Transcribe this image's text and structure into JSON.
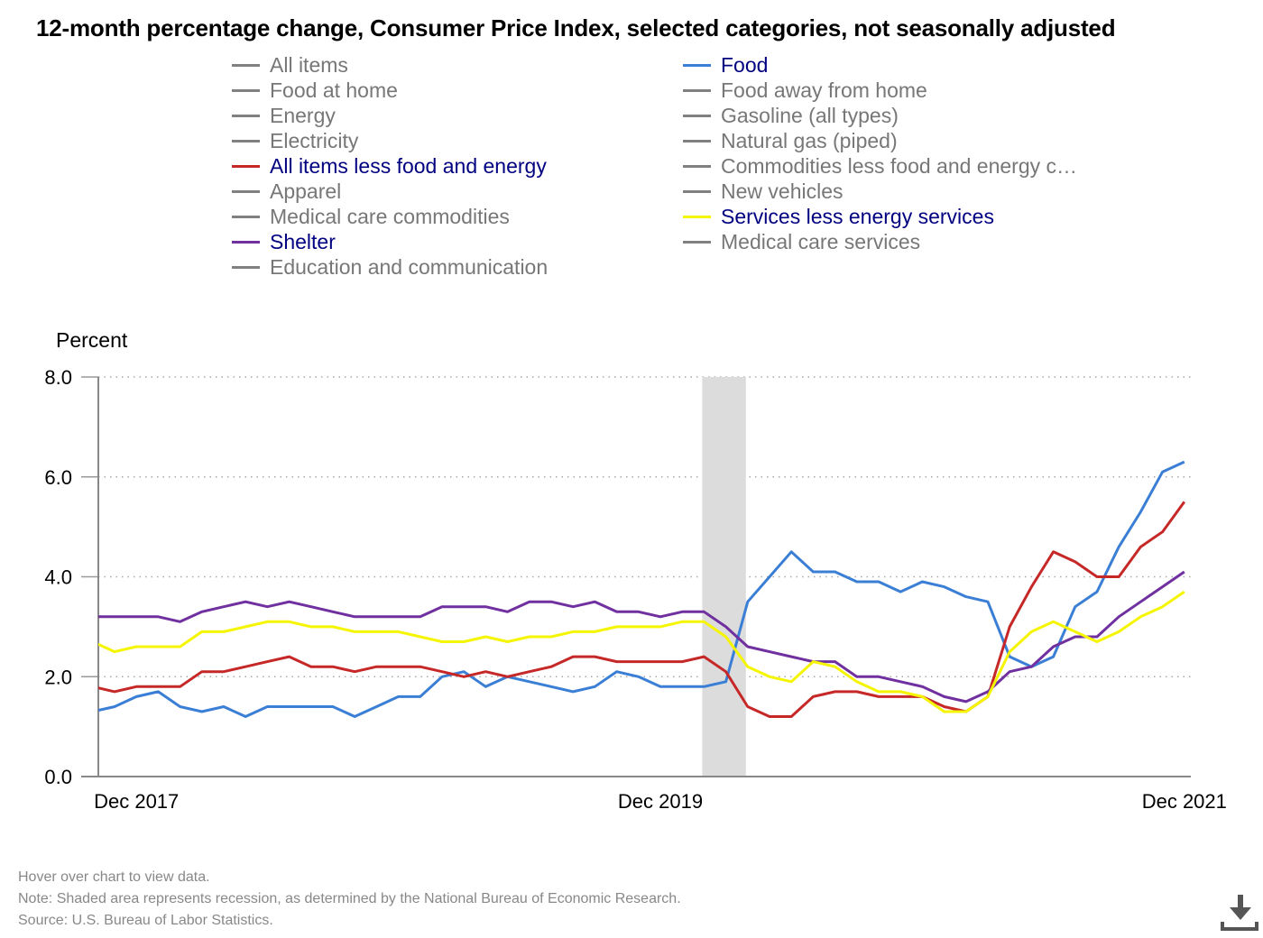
{
  "title": "12-month percentage change, Consumer Price Index, selected categories, not seasonally adjusted",
  "legend": {
    "column1": [
      {
        "label": "All items",
        "color": "#808080",
        "active": false
      },
      {
        "label": "Food at home",
        "color": "#808080",
        "active": false
      },
      {
        "label": "Energy",
        "color": "#808080",
        "active": false
      },
      {
        "label": "Electricity",
        "color": "#808080",
        "active": false
      },
      {
        "label": "All items less food and energy",
        "color": "#c62828",
        "active": true
      },
      {
        "label": "Apparel",
        "color": "#808080",
        "active": false
      },
      {
        "label": "Medical care commodities",
        "color": "#808080",
        "active": false
      },
      {
        "label": "Shelter",
        "color": "#7030a0",
        "active": true
      },
      {
        "label": "Education and communication",
        "color": "#808080",
        "active": false
      }
    ],
    "column2": [
      {
        "label": "Food",
        "color": "#3a7fd5",
        "active": true
      },
      {
        "label": "Food away from home",
        "color": "#808080",
        "active": false
      },
      {
        "label": "Gasoline (all types)",
        "color": "#808080",
        "active": false
      },
      {
        "label": "Natural gas (piped)",
        "color": "#808080",
        "active": false
      },
      {
        "label": "Commodities less food and energy c…",
        "color": "#808080",
        "active": false
      },
      {
        "label": "New vehicles",
        "color": "#808080",
        "active": false
      },
      {
        "label": "Services less energy services",
        "color": "#f5f500",
        "active": true
      },
      {
        "label": "Medical care services",
        "color": "#808080",
        "active": false
      }
    ]
  },
  "footer": {
    "hover": "Hover over chart to view data.",
    "note": "Note: Shaded area represents recession, as determined by the National Bureau of Economic Research.",
    "source": "Source: U.S. Bureau of Labor Statistics.",
    "download_icon": "download-icon"
  },
  "chart_data": {
    "type": "line",
    "title": "12-month percentage change, Consumer Price Index, selected categories, not seasonally adjusted",
    "ylabel": "Percent",
    "xlabel": "",
    "ylim": [
      0,
      8
    ],
    "yticks": [
      "0.0",
      "2.0",
      "4.0",
      "6.0",
      "8.0"
    ],
    "xticks": [
      {
        "label": "Dec 2017",
        "month": "2017-12"
      },
      {
        "label": "Dec 2019",
        "month": "2019-12"
      },
      {
        "label": "Dec 2021",
        "month": "2021-12"
      }
    ],
    "grid": "horizontal dotted",
    "recession": {
      "start": "2020-02",
      "end": "2020-04",
      "color": "#dcdcdc"
    },
    "x": [
      "2017-10",
      "2017-11",
      "2017-12",
      "2018-01",
      "2018-02",
      "2018-03",
      "2018-04",
      "2018-05",
      "2018-06",
      "2018-07",
      "2018-08",
      "2018-09",
      "2018-10",
      "2018-11",
      "2018-12",
      "2019-01",
      "2019-02",
      "2019-03",
      "2019-04",
      "2019-05",
      "2019-06",
      "2019-07",
      "2019-08",
      "2019-09",
      "2019-10",
      "2019-11",
      "2019-12",
      "2020-01",
      "2020-02",
      "2020-03",
      "2020-04",
      "2020-05",
      "2020-06",
      "2020-07",
      "2020-08",
      "2020-09",
      "2020-10",
      "2020-11",
      "2020-12",
      "2021-01",
      "2021-02",
      "2021-03",
      "2021-04",
      "2021-05",
      "2021-06",
      "2021-07",
      "2021-08",
      "2021-09",
      "2021-10",
      "2021-11",
      "2021-12"
    ],
    "series": [
      {
        "name": "Food",
        "color": "#3a7fd5",
        "values": [
          1.3,
          1.4,
          1.6,
          1.7,
          1.4,
          1.3,
          1.4,
          1.2,
          1.4,
          1.4,
          1.4,
          1.4,
          1.2,
          1.4,
          1.6,
          1.6,
          2.0,
          2.1,
          1.8,
          2.0,
          1.9,
          1.8,
          1.7,
          1.8,
          2.1,
          2.0,
          1.8,
          1.8,
          1.8,
          1.9,
          3.5,
          4.0,
          4.5,
          4.1,
          4.1,
          3.9,
          3.9,
          3.7,
          3.9,
          3.8,
          3.6,
          3.5,
          2.4,
          2.2,
          2.4,
          3.4,
          3.7,
          4.6,
          5.3,
          6.1,
          6.3
        ]
      },
      {
        "name": "All items less food and energy",
        "color": "#c62828",
        "values": [
          1.8,
          1.7,
          1.8,
          1.8,
          1.8,
          2.1,
          2.1,
          2.2,
          2.3,
          2.4,
          2.2,
          2.2,
          2.1,
          2.2,
          2.2,
          2.2,
          2.1,
          2.0,
          2.1,
          2.0,
          2.1,
          2.2,
          2.4,
          2.4,
          2.3,
          2.3,
          2.3,
          2.3,
          2.4,
          2.1,
          1.4,
          1.2,
          1.2,
          1.6,
          1.7,
          1.7,
          1.6,
          1.6,
          1.6,
          1.4,
          1.3,
          1.6,
          3.0,
          3.8,
          4.5,
          4.3,
          4.0,
          4.0,
          4.6,
          4.9,
          5.5
        ]
      },
      {
        "name": "Shelter",
        "color": "#7030a0",
        "values": [
          3.2,
          3.2,
          3.2,
          3.2,
          3.1,
          3.3,
          3.4,
          3.5,
          3.4,
          3.5,
          3.4,
          3.3,
          3.2,
          3.2,
          3.2,
          3.2,
          3.4,
          3.4,
          3.4,
          3.3,
          3.5,
          3.5,
          3.4,
          3.5,
          3.3,
          3.3,
          3.2,
          3.3,
          3.3,
          3.0,
          2.6,
          2.5,
          2.4,
          2.3,
          2.3,
          2.0,
          2.0,
          1.9,
          1.8,
          1.6,
          1.5,
          1.7,
          2.1,
          2.2,
          2.6,
          2.8,
          2.8,
          3.2,
          3.5,
          3.8,
          4.1
        ]
      },
      {
        "name": "Services less energy services",
        "color": "#f5f500",
        "values": [
          2.7,
          2.5,
          2.6,
          2.6,
          2.6,
          2.9,
          2.9,
          3.0,
          3.1,
          3.1,
          3.0,
          3.0,
          2.9,
          2.9,
          2.9,
          2.8,
          2.7,
          2.7,
          2.8,
          2.7,
          2.8,
          2.8,
          2.9,
          2.9,
          3.0,
          3.0,
          3.0,
          3.1,
          3.1,
          2.8,
          2.2,
          2.0,
          1.9,
          2.3,
          2.2,
          1.9,
          1.7,
          1.7,
          1.6,
          1.3,
          1.3,
          1.6,
          2.5,
          2.9,
          3.1,
          2.9,
          2.7,
          2.9,
          3.2,
          3.4,
          3.7
        ]
      }
    ]
  }
}
